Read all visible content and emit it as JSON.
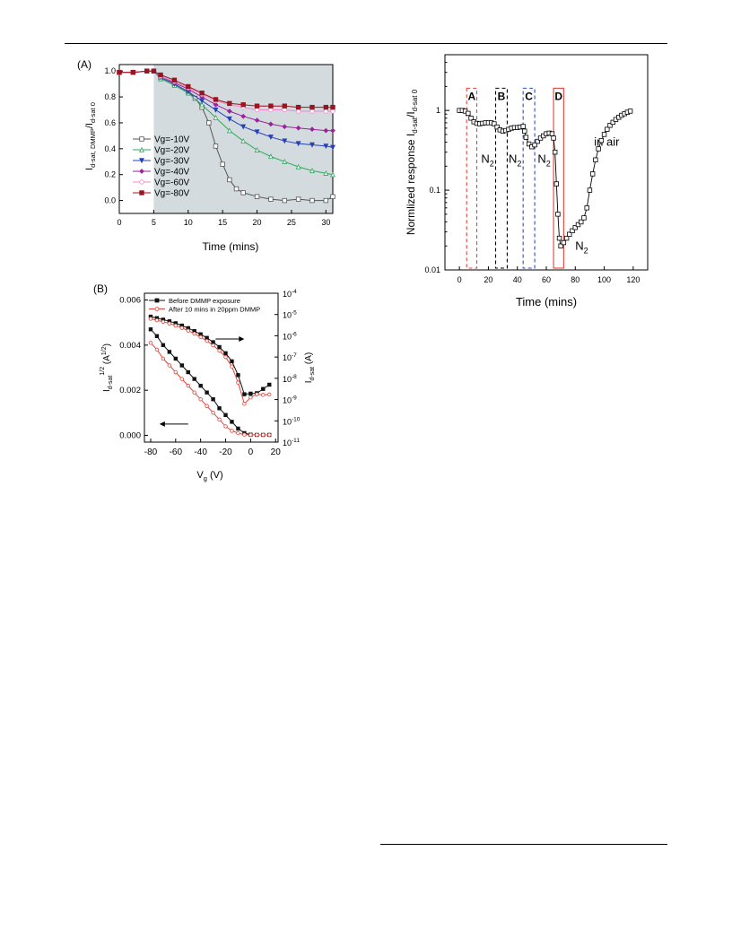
{
  "colors": {
    "plot_a_shade": "#d3dbdf",
    "series_colors": [
      "#555555",
      "#2eaa5c",
      "#2640b8",
      "#9a2398",
      "#ef8ad0",
      "#9a1520"
    ],
    "before_color": "#111111",
    "after_color": "#e0443a",
    "box_colors": [
      "#e0443a",
      "#000000",
      "#2d4ec9",
      "#e0443a"
    ]
  },
  "chart_data": [
    {
      "panel_label": "(A)",
      "type": "line",
      "xlabel": "Time (mins)",
      "ylabel_main": "I",
      "ylabel_sub1": "d-sat, DMMP",
      "ylabel_mid": "/I",
      "ylabel_sub2": "d-sat 0",
      "xlim": [
        0,
        31
      ],
      "ylim": [
        -0.1,
        1.05
      ],
      "xticks": [
        0,
        5,
        10,
        15,
        20,
        25,
        30
      ],
      "yticks": [
        0.0,
        0.2,
        0.4,
        0.6,
        0.8,
        1.0
      ],
      "ytick_labels": [
        "0.0",
        "0.2",
        "0.4",
        "0.6",
        "0.8",
        "1.0"
      ],
      "shaded_from_x": 5,
      "markers": [
        "square-open",
        "triangle-open",
        "triangle-down-filled",
        "diamond-filled",
        "circle-open",
        "square-filled"
      ],
      "legend_position": "middle-left",
      "series": [
        {
          "name": "Vg=-10V",
          "x": [
            0,
            2,
            4,
            5,
            6,
            8,
            10,
            11,
            12,
            13,
            14,
            15,
            16,
            17,
            18,
            20,
            22,
            24,
            26,
            28,
            30,
            31
          ],
          "y": [
            0.99,
            0.99,
            1.0,
            1.0,
            0.95,
            0.9,
            0.84,
            0.79,
            0.72,
            0.6,
            0.42,
            0.28,
            0.16,
            0.09,
            0.06,
            0.03,
            0.01,
            0.0,
            0.01,
            0.0,
            0.0,
            0.03
          ]
        },
        {
          "name": "Vg=-20V",
          "x": [
            0,
            2,
            4,
            5,
            6,
            8,
            10,
            12,
            14,
            16,
            18,
            20,
            22,
            24,
            26,
            28,
            30,
            31
          ],
          "y": [
            0.99,
            0.99,
            1.0,
            1.0,
            0.94,
            0.89,
            0.83,
            0.74,
            0.64,
            0.54,
            0.46,
            0.39,
            0.34,
            0.3,
            0.26,
            0.23,
            0.21,
            0.2
          ]
        },
        {
          "name": "Vg=-30V",
          "x": [
            0,
            2,
            4,
            5,
            6,
            8,
            10,
            12,
            14,
            16,
            18,
            20,
            22,
            24,
            26,
            28,
            30,
            31
          ],
          "y": [
            0.99,
            0.99,
            1.0,
            1.0,
            0.95,
            0.9,
            0.84,
            0.77,
            0.7,
            0.63,
            0.57,
            0.53,
            0.49,
            0.46,
            0.44,
            0.43,
            0.42,
            0.41
          ]
        },
        {
          "name": "Vg=-40V",
          "x": [
            0,
            2,
            4,
            5,
            6,
            8,
            10,
            12,
            14,
            16,
            18,
            20,
            22,
            24,
            26,
            28,
            30,
            31
          ],
          "y": [
            0.99,
            0.99,
            1.0,
            1.0,
            0.96,
            0.91,
            0.86,
            0.8,
            0.74,
            0.69,
            0.65,
            0.62,
            0.59,
            0.57,
            0.56,
            0.55,
            0.54,
            0.54
          ]
        },
        {
          "name": "Vg=-60V",
          "x": [
            0,
            2,
            4,
            5,
            6,
            8,
            10,
            12,
            14,
            16,
            18,
            20,
            22,
            24,
            26,
            28,
            30,
            31
          ],
          "y": [
            0.99,
            0.99,
            1.0,
            1.0,
            0.96,
            0.92,
            0.87,
            0.82,
            0.77,
            0.74,
            0.72,
            0.7,
            0.7,
            0.7,
            0.69,
            0.69,
            0.69,
            0.69
          ]
        },
        {
          "name": "Vg=-80V",
          "x": [
            0,
            2,
            4,
            5,
            6,
            8,
            10,
            12,
            14,
            16,
            18,
            20,
            22,
            24,
            26,
            28,
            30,
            31
          ],
          "y": [
            0.99,
            0.99,
            1.0,
            1.0,
            0.97,
            0.93,
            0.88,
            0.83,
            0.78,
            0.75,
            0.74,
            0.73,
            0.73,
            0.73,
            0.72,
            0.72,
            0.72,
            0.72
          ]
        }
      ]
    },
    {
      "panel_label": "(B)",
      "type": "line",
      "xlabel_main": "V",
      "xlabel_sub": "g",
      "xlabel_unit": " (V)",
      "ylabel_left_main": "I",
      "ylabel_left_sub": "d-sat",
      "ylabel_left_sup": "1/2",
      "ylabel_left_unit": " (A",
      "ylabel_left_unit_sup": "1/2",
      "ylabel_left_close": ")",
      "ylabel_right_main": "I",
      "ylabel_right_sub": "d-sat",
      "ylabel_right_unit": " (A)",
      "xlim": [
        -85,
        22
      ],
      "xticks": [
        -80,
        -60,
        -40,
        -20,
        0,
        20
      ],
      "ylim_left": [
        -0.0003,
        0.0063
      ],
      "yticks_left": [
        0.0,
        0.002,
        0.004,
        0.006
      ],
      "ytick_labels_left": [
        "0.000",
        "0.002",
        "0.004",
        "0.006"
      ],
      "ylim_right_log10": [
        -11,
        -4
      ],
      "yticks_right_exp": [
        -11,
        -10,
        -9,
        -8,
        -7,
        -6,
        -5,
        -4
      ],
      "ytick_right_base": "10",
      "ytick_right_exps": [
        "-11",
        "-10",
        "-9",
        "-8",
        "-7",
        "-6",
        "-5",
        "-4"
      ],
      "legend_position": "top-left",
      "series": [
        {
          "name": "Before DMMP exposure",
          "axis": "left",
          "marker": "square-filled",
          "x": [
            -80,
            -75,
            -70,
            -65,
            -60,
            -55,
            -50,
            -45,
            -40,
            -35,
            -30,
            -25,
            -20,
            -15,
            -10,
            -5,
            0,
            5,
            10,
            15
          ],
          "y": [
            0.0047,
            0.0044,
            0.004,
            0.0037,
            0.0034,
            0.0031,
            0.0028,
            0.0025,
            0.0022,
            0.0019,
            0.0016,
            0.0012,
            0.0009,
            0.0006,
            0.0003,
            0.0001,
            3e-05,
            2e-05,
            2e-05,
            2e-05
          ]
        },
        {
          "name": "After 10 mins in 20ppm DMMP",
          "axis": "left",
          "marker": "circle-open",
          "x": [
            -80,
            -75,
            -70,
            -65,
            -60,
            -55,
            -50,
            -45,
            -40,
            -35,
            -30,
            -25,
            -20,
            -15,
            -10,
            -5,
            0,
            5,
            10,
            15
          ],
          "y": [
            0.0041,
            0.0038,
            0.0034,
            0.0031,
            0.0028,
            0.0025,
            0.0022,
            0.0019,
            0.0016,
            0.0013,
            0.001,
            0.0007,
            0.0004,
            0.0002,
            0.0001,
            3e-05,
            2e-05,
            2e-05,
            2e-05,
            2e-05
          ]
        },
        {
          "name": "",
          "axis": "right",
          "marker": "square-filled",
          "x": [
            -80,
            -75,
            -70,
            -65,
            -60,
            -55,
            -50,
            -45,
            -40,
            -35,
            -30,
            -25,
            -20,
            -15,
            -10,
            -5,
            0,
            5,
            10,
            15
          ],
          "log10_y": [
            -5.1,
            -5.17,
            -5.24,
            -5.32,
            -5.41,
            -5.52,
            -5.64,
            -5.78,
            -5.93,
            -6.1,
            -6.3,
            -6.53,
            -6.82,
            -7.2,
            -7.85,
            -8.75,
            -8.72,
            -8.7,
            -8.5,
            -8.3
          ]
        },
        {
          "name": "",
          "axis": "right",
          "marker": "circle-open",
          "x": [
            -80,
            -75,
            -70,
            -65,
            -60,
            -55,
            -50,
            -45,
            -40,
            -35,
            -30,
            -25,
            -20,
            -15,
            -10,
            -5,
            0,
            5,
            10,
            15
          ],
          "log10_y": [
            -5.2,
            -5.27,
            -5.34,
            -5.42,
            -5.52,
            -5.63,
            -5.76,
            -5.9,
            -6.06,
            -6.24,
            -6.45,
            -6.7,
            -7.0,
            -7.45,
            -8.2,
            -9.2,
            -8.9,
            -8.75,
            -8.78,
            -8.76
          ]
        }
      ],
      "arrows": [
        {
          "direction": "right",
          "at_x": -18,
          "at_y_log10": -6.15
        },
        {
          "direction": "left",
          "at_x": -60,
          "at_y": 0.0005
        }
      ]
    },
    {
      "type": "line",
      "xlabel": "Time (mins)",
      "ylabel_main": "Normlized response I",
      "ylabel_sub1": "d-sat",
      "ylabel_mid": "/I",
      "ylabel_sub2": "d-sat 0",
      "y_scale": "log",
      "xlim": [
        -10,
        130
      ],
      "ylim": [
        0.01,
        5
      ],
      "xticks": [
        0,
        20,
        40,
        60,
        80,
        100,
        120
      ],
      "yticks": [
        0.01,
        0.1,
        1
      ],
      "ytick_labels": [
        "0.01",
        "0.1",
        "1"
      ],
      "marker": "square-open",
      "series": [
        {
          "name": "",
          "x": [
            0,
            2,
            4,
            6,
            8,
            10,
            12,
            14,
            16,
            18,
            20,
            22,
            24,
            26,
            28,
            30,
            32,
            34,
            36,
            38,
            40,
            42,
            44,
            45,
            46,
            48,
            50,
            52,
            54,
            56,
            58,
            60,
            62,
            64,
            65,
            66,
            67,
            68,
            69,
            70,
            72,
            74,
            76,
            78,
            80,
            82,
            84,
            86,
            88,
            90,
            92,
            94,
            96,
            98,
            100,
            102,
            104,
            106,
            108,
            110,
            112,
            114,
            116,
            118
          ],
          "y": [
            1.0,
            1.0,
            0.98,
            0.92,
            0.8,
            0.72,
            0.69,
            0.68,
            0.69,
            0.7,
            0.7,
            0.7,
            0.68,
            0.62,
            0.57,
            0.55,
            0.56,
            0.58,
            0.6,
            0.61,
            0.61,
            0.62,
            0.63,
            0.55,
            0.46,
            0.38,
            0.35,
            0.37,
            0.41,
            0.45,
            0.48,
            0.51,
            0.52,
            0.51,
            0.45,
            0.3,
            0.12,
            0.05,
            0.025,
            0.02,
            0.022,
            0.025,
            0.028,
            0.031,
            0.034,
            0.037,
            0.04,
            0.045,
            0.06,
            0.1,
            0.16,
            0.24,
            0.33,
            0.42,
            0.5,
            0.58,
            0.65,
            0.71,
            0.77,
            0.82,
            0.87,
            0.91,
            0.95,
            0.98
          ]
        }
      ],
      "boxes": [
        {
          "label": "A",
          "x0": 5,
          "x1": 12,
          "style": "dashed"
        },
        {
          "label": "B",
          "x0": 25,
          "x1": 33,
          "style": "dashed"
        },
        {
          "label": "C",
          "x0": 44,
          "x1": 52,
          "style": "dashed"
        },
        {
          "label": "D",
          "x0": 65,
          "x1": 72,
          "style": "solid"
        }
      ],
      "annotations": [
        {
          "text": "N",
          "sub": "2",
          "x": 15,
          "y": 0.22
        },
        {
          "text": "N",
          "sub": "2",
          "x": 34,
          "y": 0.22
        },
        {
          "text": "N",
          "sub": "2",
          "x": 54,
          "y": 0.22
        },
        {
          "text": "N",
          "sub": "2",
          "x": 80,
          "y": 0.018
        },
        {
          "text": "in air",
          "sub": "",
          "x": 93,
          "y": 0.36
        }
      ]
    }
  ]
}
